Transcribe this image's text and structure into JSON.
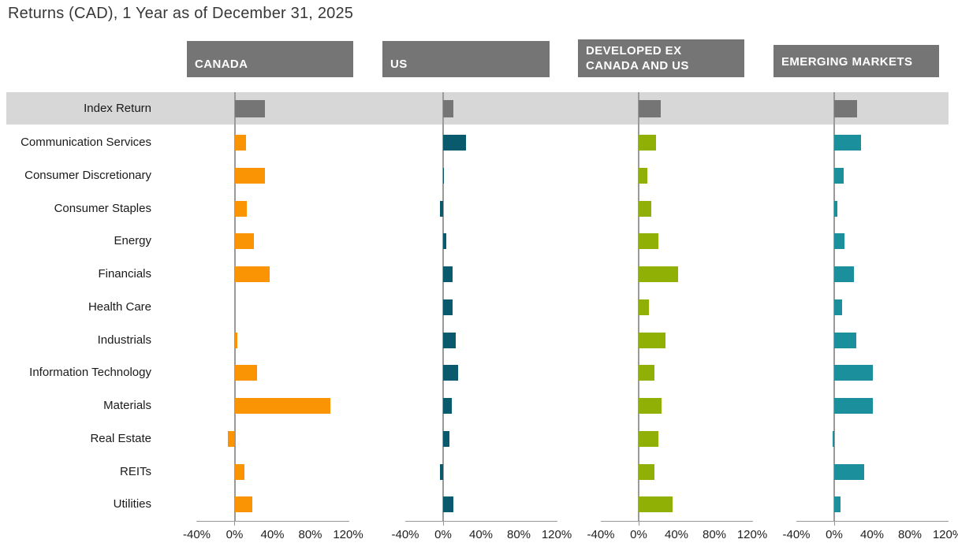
{
  "title": "Returns (CAD), 1 Year as of December 31, 2025",
  "chart_data": {
    "type": "bar",
    "orientation": "horizontal",
    "unit": "percent",
    "title": "Returns (CAD), 1 Year as of December 31, 2025",
    "index_row_label": "Index Return",
    "categories": [
      "Communication Services",
      "Consumer Discretionary",
      "Consumer Staples",
      "Energy",
      "Financials",
      "Health Care",
      "Industrials",
      "Information Technology",
      "Materials",
      "Real Estate",
      "REITs",
      "Utilities"
    ],
    "axis": {
      "ticks": [
        "-40%",
        "0%",
        "40%",
        "80%",
        "120%"
      ],
      "tick_values": [
        -40,
        0,
        40,
        80,
        120
      ],
      "xlim": [
        -40,
        120
      ],
      "grid": false
    },
    "colors": {
      "header_bg": "#757575",
      "index_band": "#D7D7D7",
      "index_bar": "#757575",
      "axis_line": "#999999"
    },
    "panels": [
      {
        "label": "CANADA",
        "color": "#FB9405",
        "index_return": 32,
        "values": [
          12,
          32,
          13,
          20,
          37,
          0,
          3,
          24,
          101,
          -7,
          10,
          19
        ]
      },
      {
        "label": "US",
        "color": "#095A6C",
        "index_return": 11,
        "values": [
          24,
          1,
          -3,
          3,
          10,
          10,
          13,
          16,
          9,
          7,
          -3,
          11
        ]
      },
      {
        "label": "DEVELOPED EX\nCANADA AND US",
        "color": "#90B005",
        "index_return": 23,
        "values": [
          18,
          9,
          13,
          21,
          42,
          11,
          28,
          17,
          24,
          21,
          17,
          36
        ]
      },
      {
        "label": "EMERGING MARKETS",
        "color": "#1B8F9C",
        "index_return": 24,
        "values": [
          28,
          10,
          3,
          11,
          21,
          8,
          23,
          41,
          41,
          -2,
          32,
          7
        ]
      }
    ],
    "legend_position": "none"
  }
}
